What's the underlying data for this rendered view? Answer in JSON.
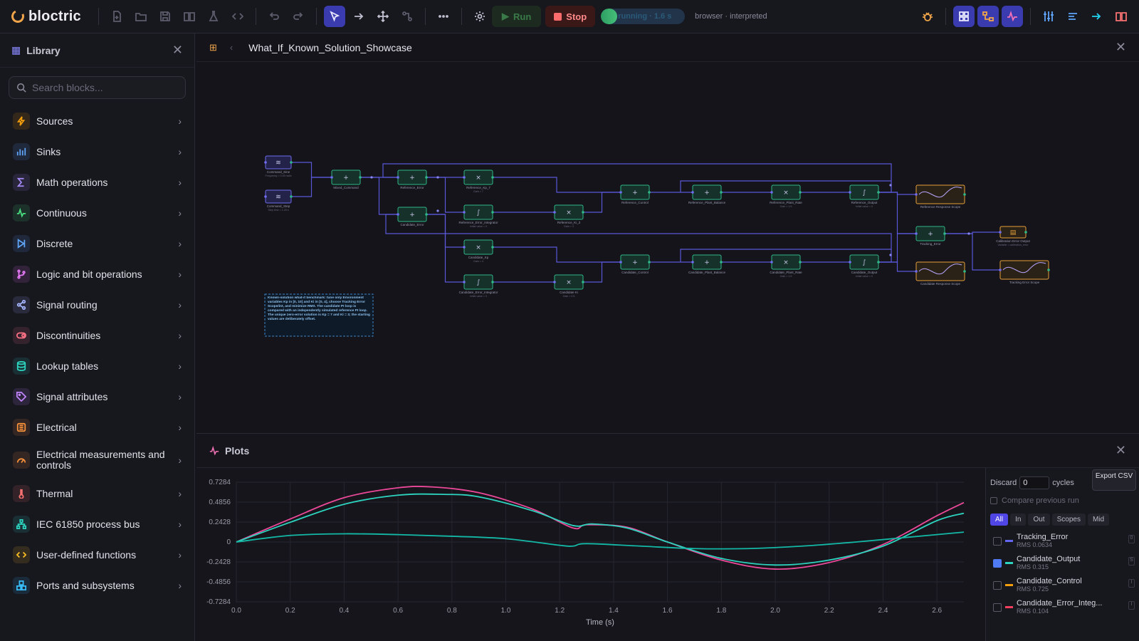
{
  "app": {
    "name": "bloctric",
    "model_name": "What_If_Known_Solution_Showcase"
  },
  "toolbar": {
    "run_label": "Run",
    "stop_label": "Stop",
    "status_text": "running · 1.6 s",
    "status_progress": 0.19,
    "mode_text": "browser · interpreted",
    "icons": [
      "new-file",
      "open",
      "save",
      "library-book",
      "flask",
      "code",
      "undo",
      "redo",
      "select-pointer",
      "arrow",
      "move",
      "connect",
      "more",
      "settings",
      "bug",
      "grid",
      "diagram",
      "plot",
      "sliders",
      "list",
      "share",
      "book"
    ]
  },
  "sidebar": {
    "title": "Library",
    "search_placeholder": "Search blocks...",
    "categories": [
      {
        "label": "Sources",
        "icon": "bolt-icon",
        "color": "#f59e0b"
      },
      {
        "label": "Sinks",
        "icon": "bar-chart-icon",
        "color": "#60a5fa"
      },
      {
        "label": "Math operations",
        "icon": "sigma-icon",
        "color": "#a78bfa"
      },
      {
        "label": "Continuous",
        "icon": "pulse-icon",
        "color": "#4ade80"
      },
      {
        "label": "Discrete",
        "icon": "step-icon",
        "color": "#60a5fa"
      },
      {
        "label": "Logic and bit operations",
        "icon": "branch-icon",
        "color": "#e879f9"
      },
      {
        "label": "Signal routing",
        "icon": "share-icon",
        "color": "#a5b4fc"
      },
      {
        "label": "Discontinuities",
        "icon": "toggle-icon",
        "color": "#fb7185"
      },
      {
        "label": "Lookup tables",
        "icon": "database-icon",
        "color": "#2dd4bf"
      },
      {
        "label": "Signal attributes",
        "icon": "tag-icon",
        "color": "#c084fc"
      },
      {
        "label": "Electrical",
        "icon": "circuit-icon",
        "color": "#fb923c"
      },
      {
        "label": "Electrical measurements and controls",
        "icon": "gauge-icon",
        "color": "#fb923c"
      },
      {
        "label": "Thermal",
        "icon": "thermometer-icon",
        "color": "#f87171"
      },
      {
        "label": "IEC 61850 process bus",
        "icon": "network-icon",
        "color": "#2dd4bf"
      },
      {
        "label": "User-defined functions",
        "icon": "code-icon",
        "color": "#fbbf24"
      },
      {
        "label": "Ports and subsystems",
        "icon": "ports-icon",
        "color": "#38bdf8"
      }
    ]
  },
  "diagram": {
    "blocks": [
      {
        "id": "cmd_sine",
        "label": "Command_Sine",
        "sub": "Frequency = 0.05 rad/s",
        "kind": "source"
      },
      {
        "id": "cmd_step",
        "label": "Command_Step",
        "sub": "Step time = 1.25 s",
        "kind": "source"
      },
      {
        "id": "mixed",
        "label": "Mixed_Command",
        "sub": "",
        "kind": "sum"
      },
      {
        "id": "ref_err",
        "label": "Reference_Error",
        "sub": "",
        "kind": "sum"
      },
      {
        "id": "cand_err",
        "label": "Candidate_Error",
        "sub": "",
        "kind": "sum"
      },
      {
        "id": "ref_kp",
        "label": "Reference_Kp_7",
        "sub": "Gain = 7",
        "kind": "gain"
      },
      {
        "id": "ref_int",
        "label": "Reference_Error_Integrator",
        "sub": "Initial value = 0",
        "kind": "int"
      },
      {
        "id": "ref_ki",
        "label": "Reference_Ki_3",
        "sub": "Gain = 3",
        "kind": "gain"
      },
      {
        "id": "cand_kp",
        "label": "Candidate_Kp",
        "sub": "Gain = 4",
        "kind": "gain"
      },
      {
        "id": "cand_int",
        "label": "Candidate_Error_Integrator",
        "sub": "Initial value = 0",
        "kind": "int"
      },
      {
        "id": "cand_ki",
        "label": "Candidate Ki",
        "sub": "Gain = 0.5",
        "kind": "gain"
      },
      {
        "id": "ref_ctrl",
        "label": "Reference_Control",
        "sub": "",
        "kind": "sum"
      },
      {
        "id": "ref_pb",
        "label": "Reference_Plant_Balance",
        "sub": "",
        "kind": "sum"
      },
      {
        "id": "ref_prate",
        "label": "Reference_Plant_Rate",
        "sub": "Gain = 1.5",
        "kind": "gain"
      },
      {
        "id": "ref_out",
        "label": "Reference_Output",
        "sub": "Initial value = 0",
        "kind": "int"
      },
      {
        "id": "cand_ctrl",
        "label": "Candidate_Control",
        "sub": "",
        "kind": "sum"
      },
      {
        "id": "cand_pb",
        "label": "Candidate_Plant_Balance",
        "sub": "",
        "kind": "sum"
      },
      {
        "id": "cand_prate",
        "label": "Candidate_Plant_Rate",
        "sub": "Gain = 1.5",
        "kind": "gain"
      },
      {
        "id": "cand_out",
        "label": "Candidate_Output",
        "sub": "Initial value = 0",
        "kind": "int"
      },
      {
        "id": "track_err",
        "label": "Tracking_Error",
        "sub": "",
        "kind": "sum"
      },
      {
        "id": "ref_scope",
        "label": "Reference Response Scope",
        "sub": "",
        "kind": "scope"
      },
      {
        "id": "cand_scope",
        "label": "Candidate Response Scope",
        "sub": "",
        "kind": "scope"
      },
      {
        "id": "calib",
        "label": "Calibration Error Output",
        "sub": "Variable = calibration_error",
        "kind": "sink"
      },
      {
        "id": "track_scope",
        "label": "Tracking Error Scope",
        "sub": "",
        "kind": "scope"
      }
    ],
    "note": "Known-solution what-if benchmark: tune only Environment variables Kp in [0, 10] and Ki in [0, 4], choose Tracking Error Scope/int, and minimize RMS. The candidate PI loop is compared with an independently simulated reference PI loop. The unique zero-error solution is Kp = 7 and Ki = 3; the starting values are deliberately offset."
  },
  "plots": {
    "title": "Plots",
    "discard_label": "Discard",
    "discard_value": "0",
    "cycles_label": "cycles",
    "export_label": "Export CSV",
    "compare_label": "Compare previous run",
    "filters": [
      "All",
      "In",
      "Out",
      "Scopes",
      "Mid"
    ],
    "signals": [
      {
        "name": "Tracking_Error",
        "rms": "RMS 0.0634",
        "color": "#6366f1",
        "checked": false,
        "tag": "0"
      },
      {
        "name": "Candidate_Output",
        "rms": "RMS 0.315",
        "color": "#2dd4bf",
        "checked": true,
        "tag": "S"
      },
      {
        "name": "Candidate_Control",
        "rms": "RMS 0.725",
        "color": "#f59e0b",
        "checked": false,
        "tag": "I"
      },
      {
        "name": "Candidate_Error_Integ...",
        "rms": "RMS 0.104",
        "color": "#f43f5e",
        "checked": false,
        "tag": "I"
      }
    ]
  },
  "chart_data": {
    "type": "line",
    "xlabel": "Time (s)",
    "ylabel": "",
    "xlim": [
      0,
      2.7
    ],
    "ylim": [
      -0.7284,
      0.7284
    ],
    "x_ticks": [
      "0.0",
      "0.2",
      "0.4",
      "0.6",
      "0.8",
      "1.0",
      "1.2",
      "1.4",
      "1.6",
      "1.8",
      "2.0",
      "2.2",
      "2.4",
      "2.6"
    ],
    "y_ticks": [
      "0.7284",
      "0.4856",
      "0.2428",
      "0",
      "-0.2428",
      "-0.4856",
      "-0.7284"
    ],
    "grid": true,
    "series": [
      {
        "color": "#ec4899",
        "x": [
          0,
          0.2,
          0.4,
          0.6,
          0.73,
          0.9,
          1.1,
          1.25,
          1.3,
          1.45,
          1.6,
          1.8,
          2.0,
          2.2,
          2.4,
          2.6,
          2.7
        ],
        "y": [
          0,
          0.28,
          0.54,
          0.66,
          0.67,
          0.6,
          0.4,
          0.17,
          0.21,
          0.18,
          0.0,
          -0.22,
          -0.33,
          -0.25,
          -0.03,
          0.32,
          0.48
        ]
      },
      {
        "color": "#2dd4bf",
        "x": [
          0,
          0.2,
          0.4,
          0.6,
          0.77,
          0.9,
          1.1,
          1.25,
          1.32,
          1.45,
          1.6,
          1.8,
          2.0,
          2.2,
          2.4,
          2.6,
          2.7
        ],
        "y": [
          0,
          0.24,
          0.46,
          0.57,
          0.58,
          0.55,
          0.38,
          0.2,
          0.22,
          0.17,
          0.0,
          -0.2,
          -0.28,
          -0.22,
          -0.05,
          0.26,
          0.35
        ]
      },
      {
        "color": "#14b8a6",
        "x": [
          0,
          0.2,
          0.4,
          0.6,
          0.8,
          1.0,
          1.2,
          1.25,
          1.3,
          1.5,
          1.7,
          1.9,
          2.1,
          2.3,
          2.5,
          2.7
        ],
        "y": [
          0,
          0.08,
          0.1,
          0.09,
          0.07,
          0.04,
          -0.04,
          -0.05,
          -0.02,
          -0.05,
          -0.08,
          -0.08,
          -0.05,
          0.0,
          0.06,
          0.12
        ]
      }
    ]
  }
}
